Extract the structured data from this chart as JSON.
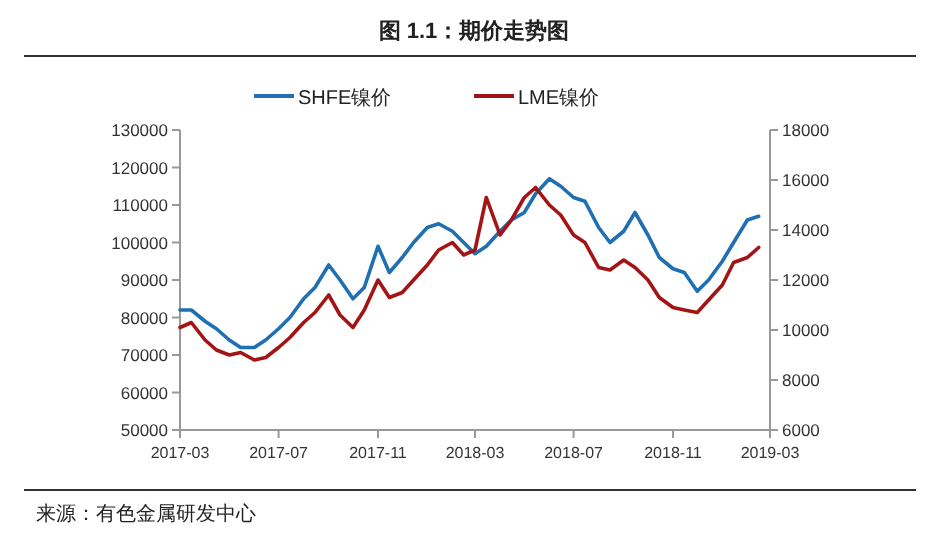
{
  "chart_data": {
    "type": "line",
    "title": "图 1.1：期价走势图",
    "legend": "top",
    "grid": false,
    "marker": "none",
    "line_style": "solid",
    "xlim": [
      "2017-03",
      "2019-03"
    ],
    "xticks": [
      "2017-03",
      "2017-07",
      "2017-11",
      "2018-03",
      "2018-07",
      "2018-11",
      "2019-03"
    ],
    "ylim": [
      50000,
      130000
    ],
    "yticks": [
      50000,
      60000,
      70000,
      80000,
      90000,
      100000,
      110000,
      120000,
      130000
    ],
    "y2lim": [
      6000,
      18000
    ],
    "y2ticks": [
      6000,
      8000,
      10000,
      12000,
      14000,
      16000,
      18000
    ],
    "x": [
      "2017-03-01",
      "2017-03-15",
      "2017-04-01",
      "2017-04-15",
      "2017-05-01",
      "2017-05-15",
      "2017-06-01",
      "2017-06-15",
      "2017-07-01",
      "2017-07-15",
      "2017-08-01",
      "2017-08-15",
      "2017-09-01",
      "2017-09-15",
      "2017-10-01",
      "2017-10-15",
      "2017-11-01",
      "2017-11-15",
      "2017-12-01",
      "2017-12-15",
      "2018-01-01",
      "2018-01-15",
      "2018-02-01",
      "2018-02-15",
      "2018-03-01",
      "2018-03-15",
      "2018-04-01",
      "2018-04-15",
      "2018-05-01",
      "2018-05-15",
      "2018-06-01",
      "2018-06-15",
      "2018-07-01",
      "2018-07-15",
      "2018-08-01",
      "2018-08-15",
      "2018-09-01",
      "2018-09-15",
      "2018-10-01",
      "2018-10-15",
      "2018-11-01",
      "2018-11-15",
      "2018-12-01",
      "2018-12-15",
      "2019-01-01",
      "2019-01-15",
      "2019-02-01",
      "2019-02-15"
    ],
    "series": [
      {
        "name": "SHFE镍价",
        "color": "#1f6fb2",
        "values": [
          82000,
          82000,
          79000,
          77000,
          74000,
          72000,
          72000,
          74000,
          77000,
          80000,
          85000,
          88000,
          94000,
          90000,
          85000,
          88000,
          99000,
          92000,
          96000,
          100000,
          104000,
          105000,
          103000,
          100000,
          97000,
          99000,
          103000,
          106000,
          108000,
          113000,
          117000,
          115000,
          112000,
          111000,
          104000,
          100000,
          103000,
          108000,
          102000,
          96000,
          93000,
          92000,
          87000,
          90000,
          95000,
          100000,
          106000,
          107000
        ]
      },
      {
        "name": "LME镍价",
        "color": "#a31515",
        "axis": "y2",
        "values": [
          10100,
          10300,
          9600,
          9200,
          9000,
          9100,
          8800,
          8900,
          9300,
          9700,
          10300,
          10700,
          11400,
          10600,
          10100,
          10800,
          12000,
          11300,
          11500,
          12000,
          12600,
          13200,
          13500,
          13000,
          13200,
          15300,
          13800,
          14400,
          15300,
          15700,
          15000,
          14600,
          13800,
          13500,
          12500,
          12400,
          12800,
          12500,
          12000,
          11300,
          10900,
          10800,
          10700,
          11200,
          11800,
          12700,
          12900,
          13300
        ]
      }
    ],
    "annotations": [
      "来源：有色金属研发中心"
    ]
  }
}
